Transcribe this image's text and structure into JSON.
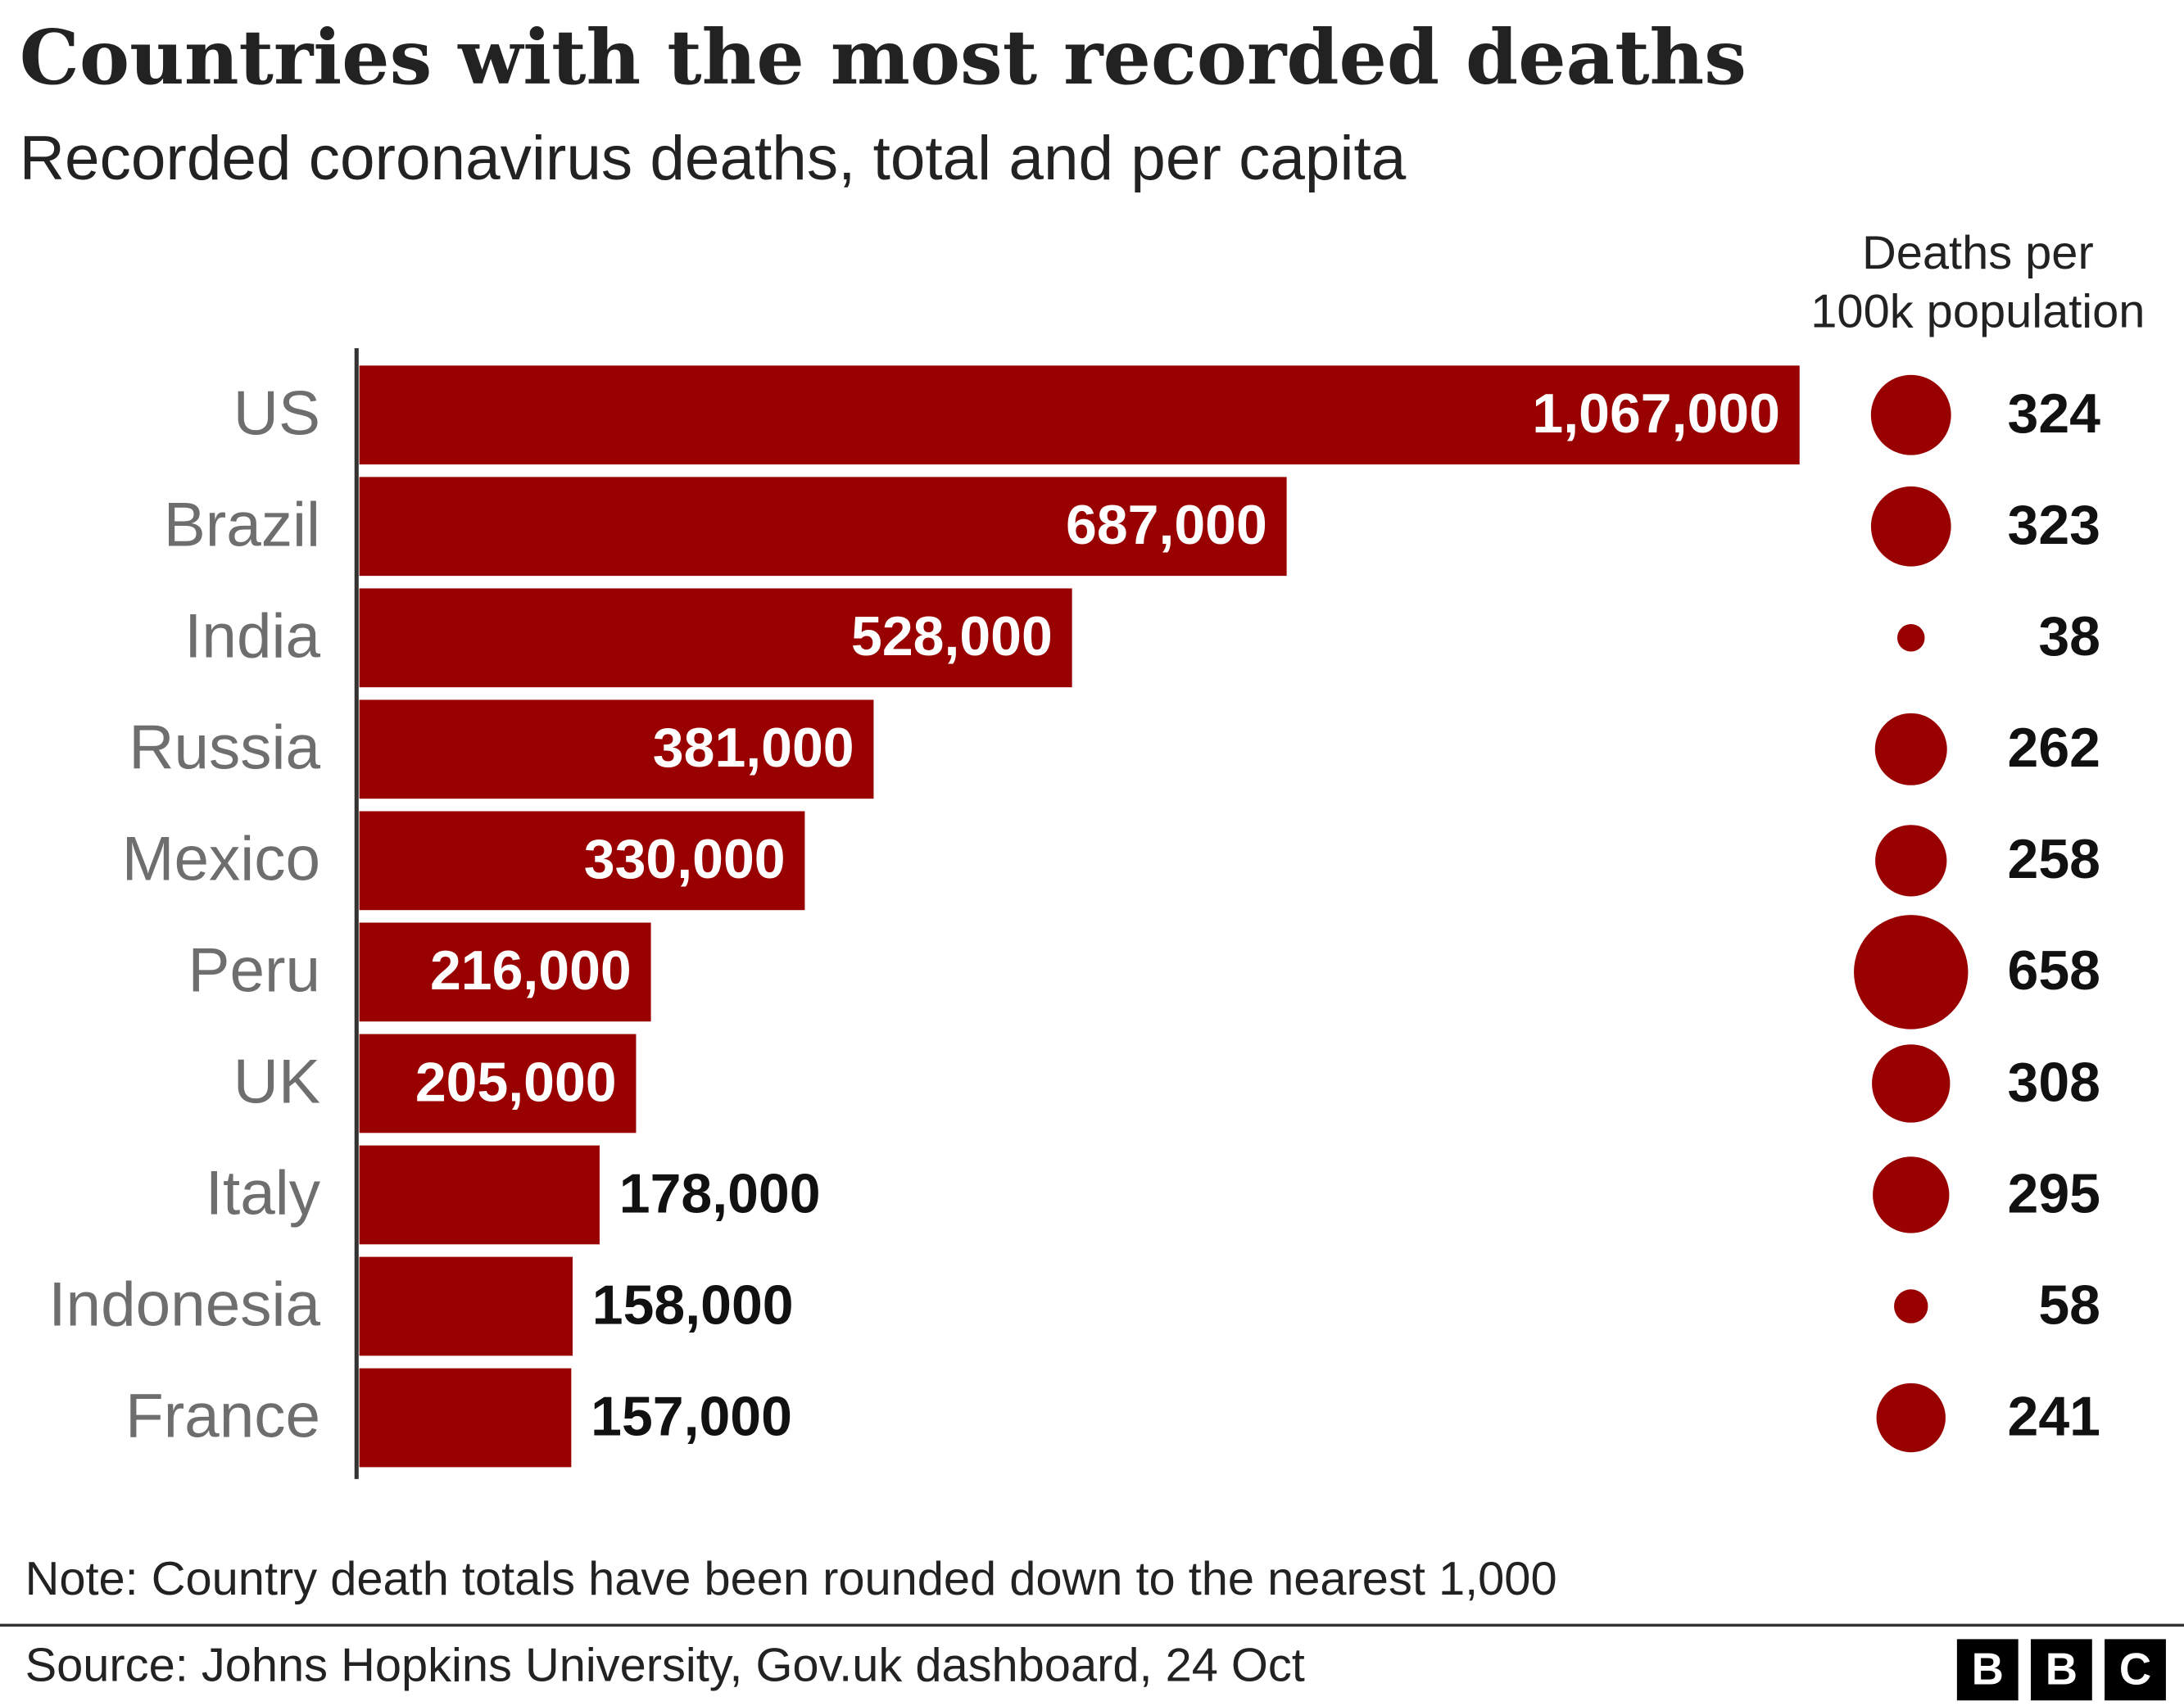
{
  "chart_data": {
    "type": "bar",
    "orientation": "horizontal",
    "title": "Countries with the most recorded deaths",
    "subtitle": "Recorded coronavirus deaths, total and per capita",
    "categories": [
      "US",
      "Brazil",
      "India",
      "Russia",
      "Mexico",
      "Peru",
      "UK",
      "Italy",
      "Indonesia",
      "France"
    ],
    "values": [
      1067000,
      687000,
      528000,
      381000,
      330000,
      216000,
      205000,
      178000,
      158000,
      157000
    ],
    "value_labels": [
      "1,067,000",
      "687,000",
      "528,000",
      "381,000",
      "330,000",
      "216,000",
      "205,000",
      "178,000",
      "158,000",
      "157,000"
    ],
    "color": "#990000",
    "bubble_series": {
      "name": [
        "Deaths per",
        "100k population"
      ],
      "color": "#990000",
      "values": [
        324,
        323,
        38,
        262,
        258,
        658,
        308,
        295,
        58,
        241
      ]
    },
    "note": "Note: Country death totals have been rounded down to the nearest 1,000",
    "source": "Source: Johns Hopkins University, Gov.uk dashboard, 24 Oct",
    "logo": [
      "B",
      "B",
      "C"
    ]
  }
}
